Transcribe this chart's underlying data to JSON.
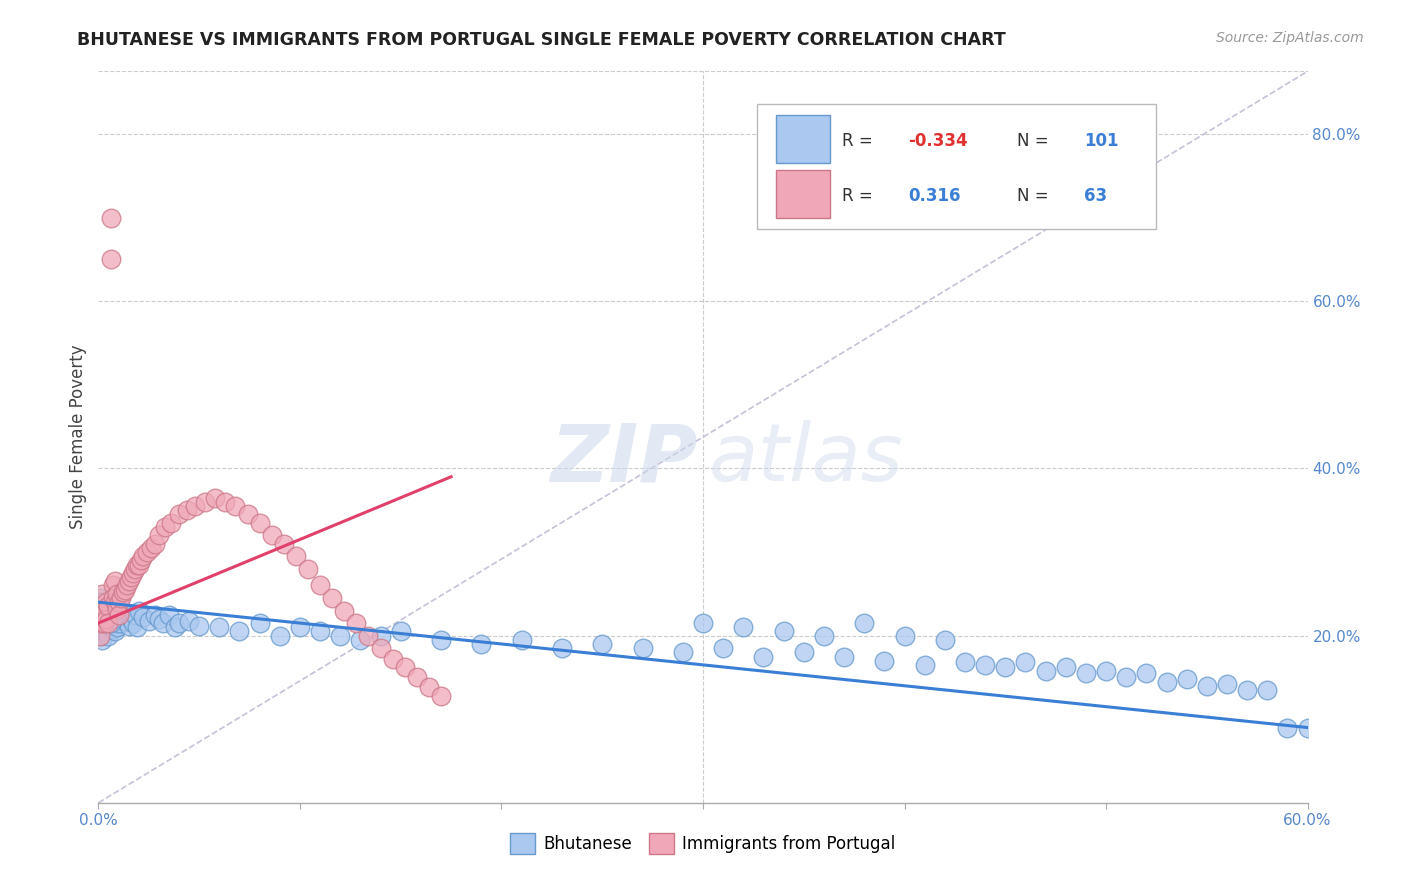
{
  "title": "BHUTANESE VS IMMIGRANTS FROM PORTUGAL SINGLE FEMALE POVERTY CORRELATION CHART",
  "source": "Source: ZipAtlas.com",
  "ylabel": "Single Female Poverty",
  "legend_label1": "Bhutanese",
  "legend_label2": "Immigrants from Portugal",
  "r1": "-0.334",
  "n1": "101",
  "r2": "0.316",
  "n2": "63",
  "xmin": 0.0,
  "xmax": 0.6,
  "ymin": 0.0,
  "ymax": 0.875,
  "right_yticks": [
    0.2,
    0.4,
    0.6,
    0.8
  ],
  "right_yticklabels": [
    "20.0%",
    "40.0%",
    "60.0%",
    "80.0%"
  ],
  "color_bhutanese": "#aac8f0",
  "color_portugal": "#f0a8b8",
  "color_line_bhutanese": "#3a7fd5",
  "color_line_portugal": "#e0406a",
  "color_diag": "#c8c0d8",
  "watermark_zip": "ZIP",
  "watermark_atlas": "atlas",
  "bhu_x": [
    0.001,
    0.001,
    0.001,
    0.002,
    0.002,
    0.002,
    0.002,
    0.003,
    0.003,
    0.003,
    0.004,
    0.004,
    0.005,
    0.005,
    0.005,
    0.006,
    0.006,
    0.007,
    0.007,
    0.008,
    0.008,
    0.009,
    0.009,
    0.01,
    0.01,
    0.01,
    0.011,
    0.012,
    0.013,
    0.014,
    0.015,
    0.016,
    0.017,
    0.018,
    0.019,
    0.02,
    0.022,
    0.025,
    0.028,
    0.03,
    0.032,
    0.035,
    0.038,
    0.04,
    0.045,
    0.05,
    0.06,
    0.07,
    0.08,
    0.09,
    0.1,
    0.11,
    0.12,
    0.13,
    0.14,
    0.15,
    0.17,
    0.19,
    0.21,
    0.23,
    0.25,
    0.27,
    0.29,
    0.31,
    0.33,
    0.35,
    0.37,
    0.39,
    0.41,
    0.43,
    0.45,
    0.47,
    0.49,
    0.51,
    0.53,
    0.55,
    0.57,
    0.59,
    0.3,
    0.32,
    0.34,
    0.36,
    0.38,
    0.4,
    0.42,
    0.44,
    0.46,
    0.48,
    0.5,
    0.52,
    0.54,
    0.56,
    0.58,
    0.6,
    0.001,
    0.002,
    0.003,
    0.004,
    0.005,
    0.006,
    0.007
  ],
  "bhu_y": [
    0.245,
    0.22,
    0.21,
    0.23,
    0.215,
    0.2,
    0.195,
    0.225,
    0.21,
    0.205,
    0.22,
    0.23,
    0.215,
    0.225,
    0.2,
    0.218,
    0.212,
    0.222,
    0.208,
    0.215,
    0.205,
    0.22,
    0.21,
    0.23,
    0.225,
    0.215,
    0.228,
    0.222,
    0.218,
    0.225,
    0.212,
    0.22,
    0.215,
    0.225,
    0.21,
    0.23,
    0.222,
    0.218,
    0.225,
    0.22,
    0.215,
    0.225,
    0.21,
    0.215,
    0.218,
    0.212,
    0.21,
    0.205,
    0.215,
    0.2,
    0.21,
    0.205,
    0.2,
    0.195,
    0.2,
    0.205,
    0.195,
    0.19,
    0.195,
    0.185,
    0.19,
    0.185,
    0.18,
    0.185,
    0.175,
    0.18,
    0.175,
    0.17,
    0.165,
    0.168,
    0.162,
    0.158,
    0.155,
    0.15,
    0.145,
    0.14,
    0.135,
    0.09,
    0.215,
    0.21,
    0.205,
    0.2,
    0.215,
    0.2,
    0.195,
    0.165,
    0.168,
    0.162,
    0.158,
    0.155,
    0.148,
    0.142,
    0.135,
    0.09,
    0.24,
    0.235,
    0.23,
    0.218,
    0.225,
    0.215,
    0.22
  ],
  "por_x": [
    0.001,
    0.001,
    0.001,
    0.002,
    0.002,
    0.003,
    0.003,
    0.004,
    0.004,
    0.005,
    0.005,
    0.006,
    0.006,
    0.007,
    0.007,
    0.008,
    0.008,
    0.009,
    0.009,
    0.01,
    0.01,
    0.011,
    0.012,
    0.013,
    0.014,
    0.015,
    0.016,
    0.017,
    0.018,
    0.019,
    0.02,
    0.021,
    0.022,
    0.024,
    0.026,
    0.028,
    0.03,
    0.033,
    0.036,
    0.04,
    0.044,
    0.048,
    0.053,
    0.058,
    0.063,
    0.068,
    0.074,
    0.08,
    0.086,
    0.092,
    0.098,
    0.104,
    0.11,
    0.116,
    0.122,
    0.128,
    0.134,
    0.14,
    0.146,
    0.152,
    0.158,
    0.164,
    0.17
  ],
  "por_y": [
    0.23,
    0.215,
    0.2,
    0.25,
    0.215,
    0.23,
    0.215,
    0.24,
    0.22,
    0.235,
    0.215,
    0.7,
    0.65,
    0.26,
    0.245,
    0.265,
    0.24,
    0.25,
    0.232,
    0.24,
    0.225,
    0.245,
    0.252,
    0.255,
    0.26,
    0.265,
    0.27,
    0.275,
    0.28,
    0.285,
    0.285,
    0.29,
    0.295,
    0.3,
    0.305,
    0.31,
    0.32,
    0.33,
    0.335,
    0.345,
    0.35,
    0.355,
    0.36,
    0.365,
    0.36,
    0.355,
    0.345,
    0.335,
    0.32,
    0.31,
    0.295,
    0.28,
    0.26,
    0.245,
    0.23,
    0.215,
    0.2,
    0.185,
    0.172,
    0.162,
    0.15,
    0.138,
    0.128
  ],
  "bhu_line_x": [
    0.0,
    0.6
  ],
  "bhu_line_y": [
    0.24,
    0.09
  ],
  "por_line_x": [
    0.0,
    0.175
  ],
  "por_line_y": [
    0.215,
    0.39
  ]
}
